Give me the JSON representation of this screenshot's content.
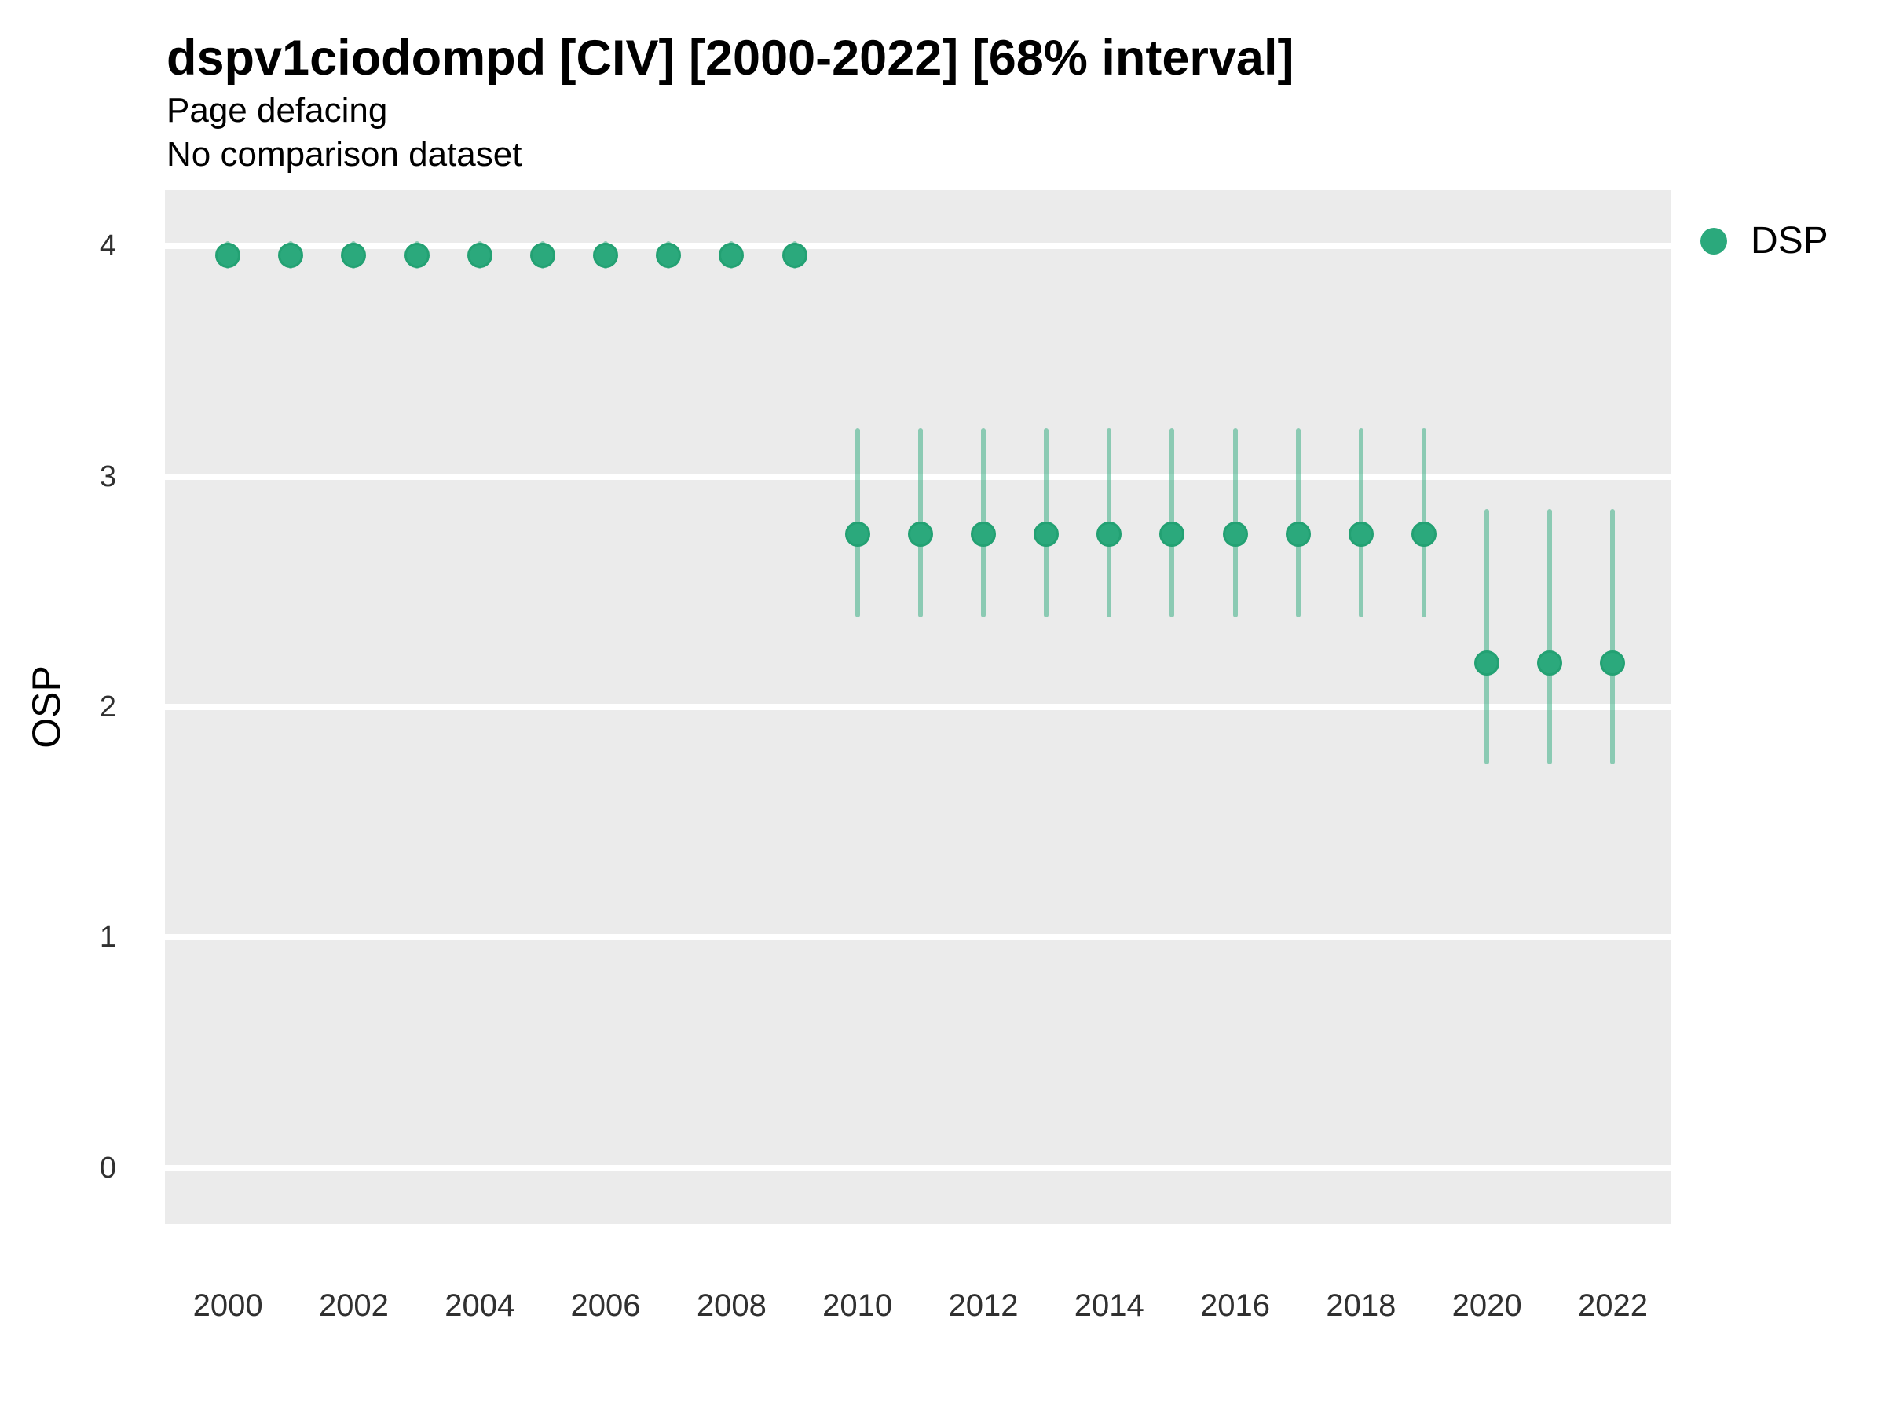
{
  "header": {
    "title": "dspv1ciodompd [CIV] [2000-2022] [68% interval]",
    "subtitle": "Page defacing",
    "dataset_note": "No comparison dataset"
  },
  "axes": {
    "y_title": "OSP",
    "x_title": ""
  },
  "legend": {
    "label": "DSP",
    "marker_color": "#2BA97C",
    "position": "top-right-outside"
  },
  "colors": {
    "point": "#2BA97C",
    "point_edge": "#23A173",
    "interval": "rgba(43,169,124,0.5)",
    "panel_bg": "#EBEBEB",
    "gridline": "#FFFFFF",
    "tick_text": "#303030",
    "text": "#000000"
  },
  "chart_data": {
    "type": "scatter",
    "title": "dspv1ciodompd [CIV] [2000-2022] [68% interval]",
    "subtitle": "Page defacing",
    "note": "No comparison dataset",
    "xlabel": "",
    "ylabel": "OSP",
    "interval_label": "68% interval",
    "grid": "horizontal-major-only",
    "legend_position": "right-top",
    "xlim": [
      1999.0,
      2022.93
    ],
    "ylim": [
      -0.242,
      4.242
    ],
    "xticks": [
      2000,
      2002,
      2004,
      2006,
      2008,
      2010,
      2012,
      2014,
      2016,
      2018,
      2020,
      2022
    ],
    "yticks": [
      0,
      1,
      2,
      3,
      4
    ],
    "series": [
      {
        "name": "DSP",
        "interval": "68%",
        "x": [
          2000,
          2001,
          2002,
          2003,
          2004,
          2005,
          2006,
          2007,
          2008,
          2009,
          2010,
          2011,
          2012,
          2013,
          2014,
          2015,
          2016,
          2017,
          2018,
          2019,
          2020,
          2021,
          2022
        ],
        "y": [
          3.96,
          3.96,
          3.96,
          3.96,
          3.96,
          3.96,
          3.96,
          3.96,
          3.96,
          3.96,
          2.75,
          2.75,
          2.75,
          2.75,
          2.75,
          2.75,
          2.75,
          2.75,
          2.75,
          2.75,
          2.19,
          2.19,
          2.19
        ],
        "lo": [
          3.9,
          3.9,
          3.9,
          3.9,
          3.9,
          3.9,
          3.9,
          3.9,
          3.9,
          3.9,
          2.39,
          2.39,
          2.39,
          2.39,
          2.39,
          2.39,
          2.39,
          2.39,
          2.39,
          2.39,
          1.75,
          1.75,
          1.75
        ],
        "hi": [
          4.02,
          4.02,
          4.02,
          4.02,
          4.02,
          4.02,
          4.02,
          4.02,
          4.02,
          4.02,
          3.21,
          3.21,
          3.21,
          3.21,
          3.21,
          3.21,
          3.21,
          3.21,
          3.21,
          3.21,
          2.86,
          2.86,
          2.86
        ]
      }
    ]
  }
}
